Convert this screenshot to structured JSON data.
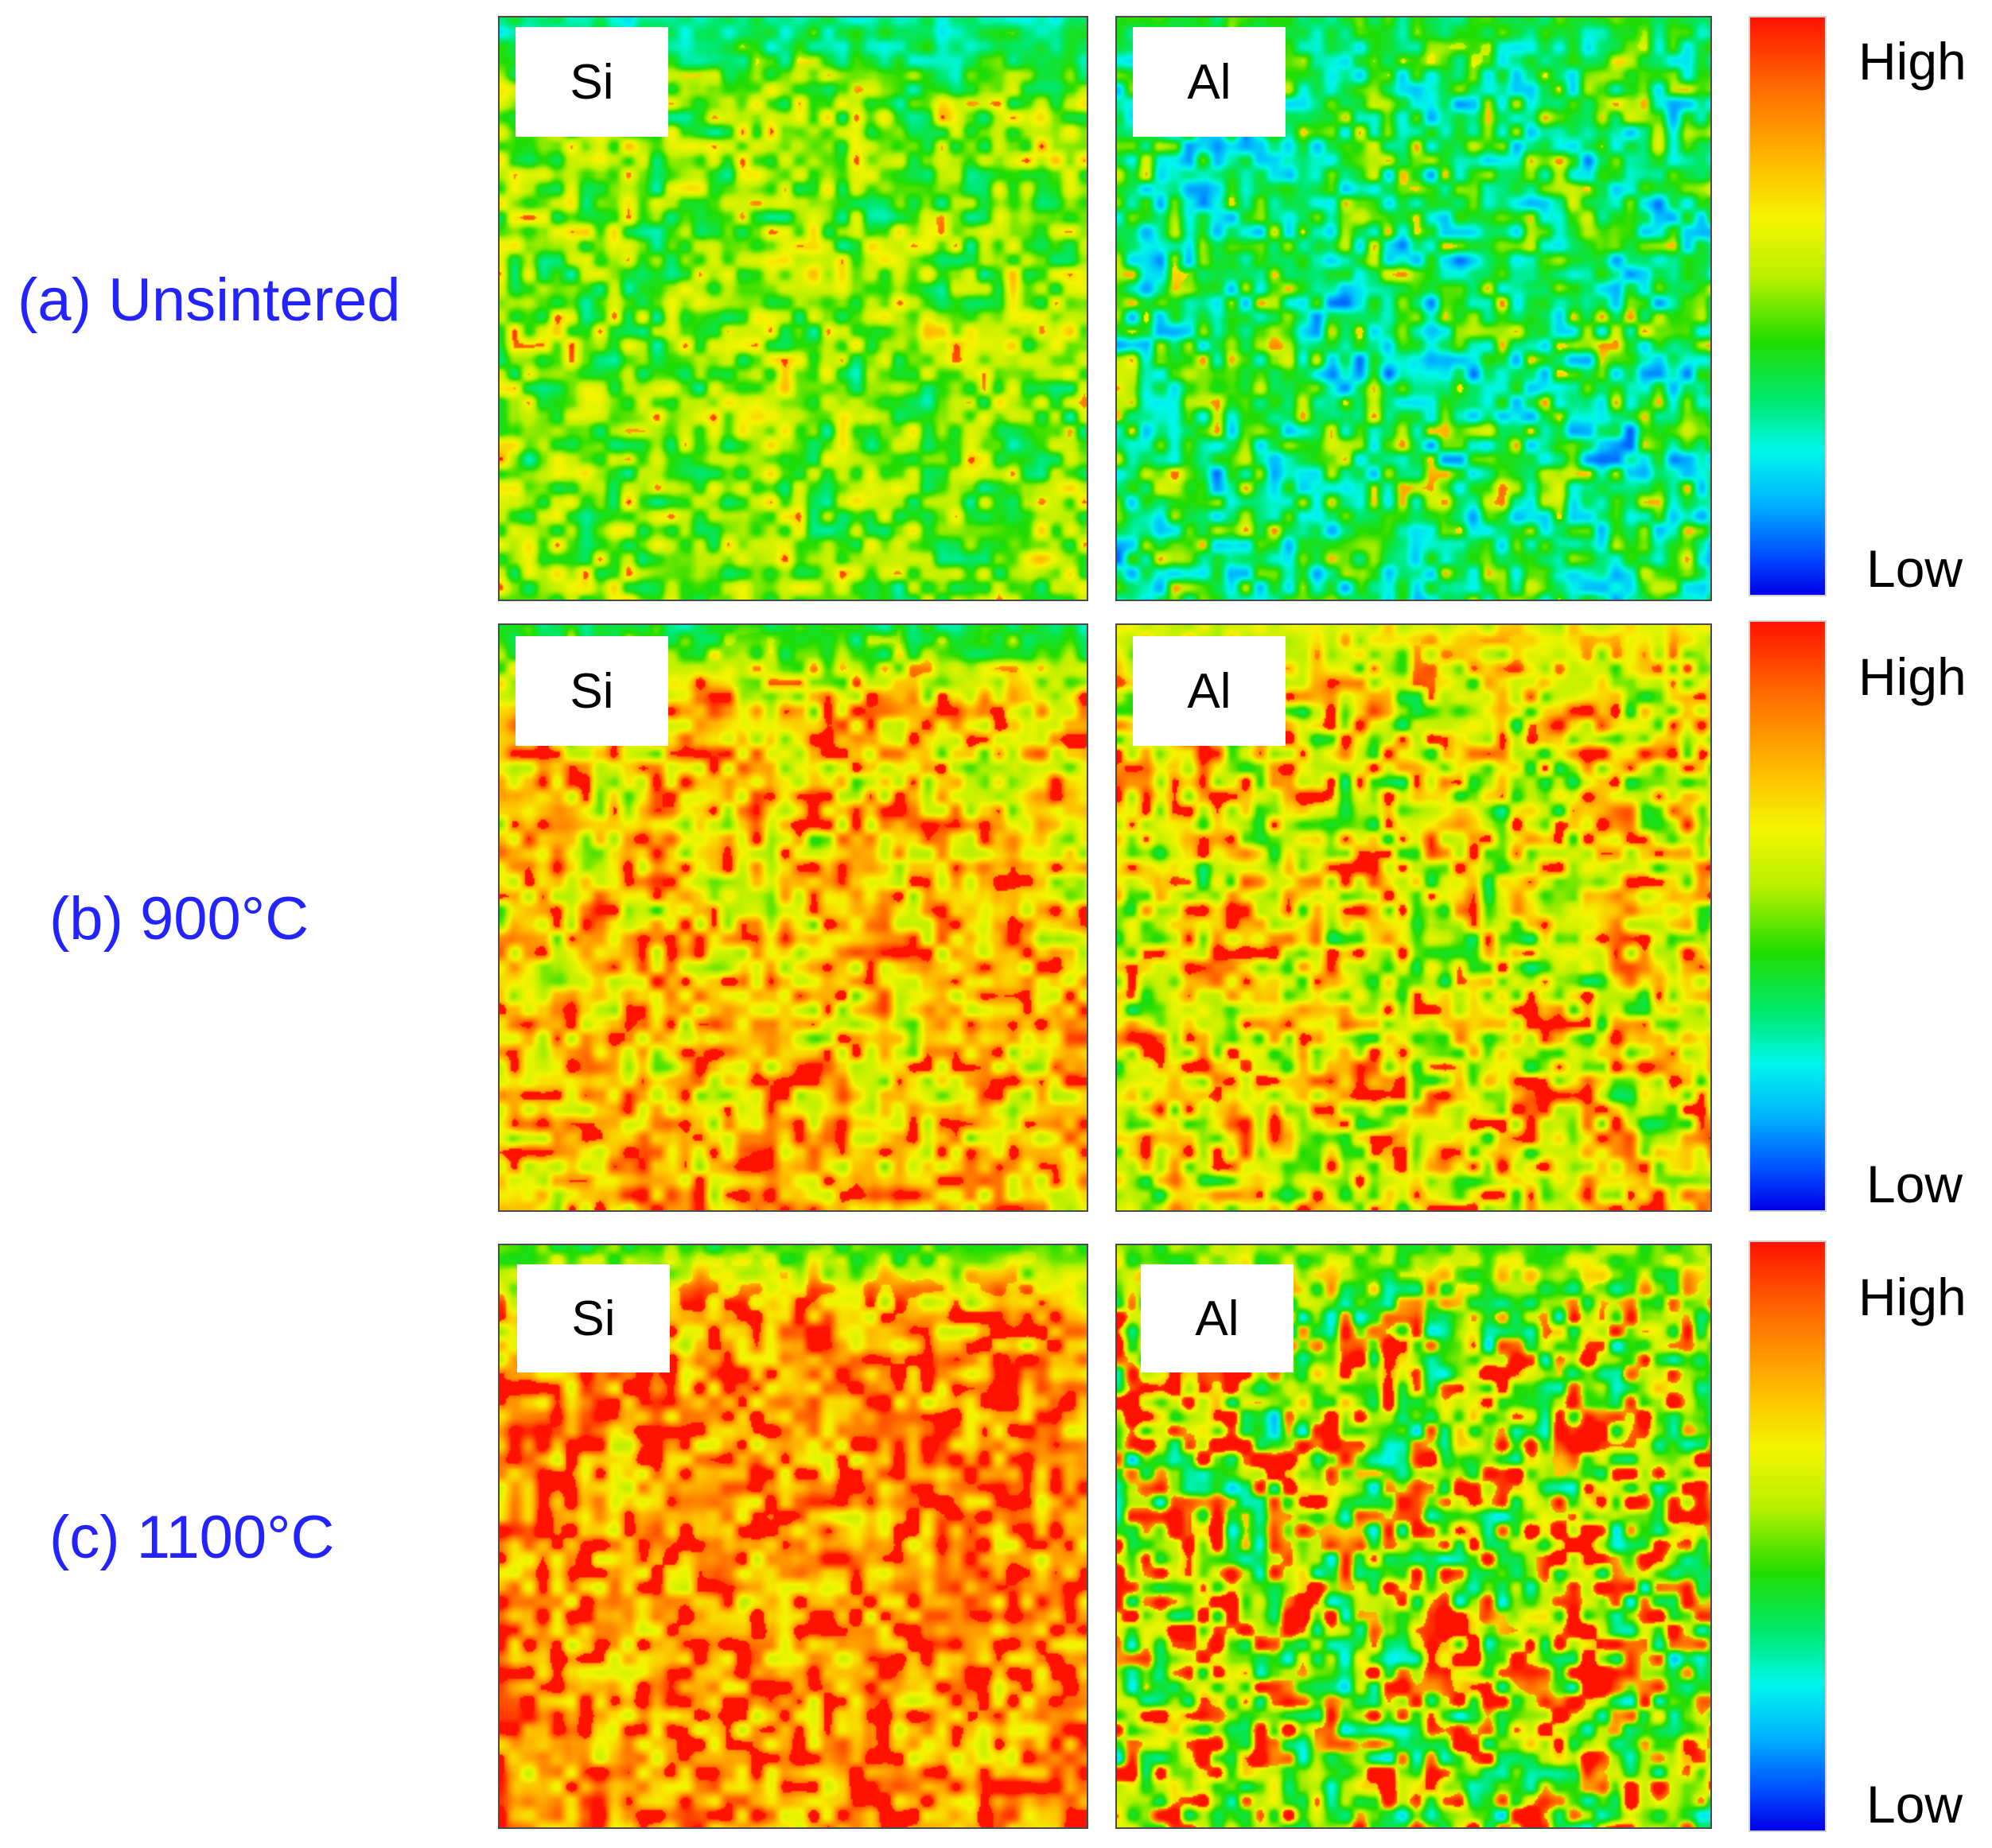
{
  "chart_data": {
    "type": "heatmap",
    "description_kind": "EDS elemental distribution maps",
    "rows": [
      {
        "label": "(a) Unsintered",
        "colorbar": {
          "high_label": "High",
          "low_label": "Low"
        },
        "panels": [
          {
            "element": "Si",
            "mean_level": 0.56,
            "spread": 0.18,
            "top_band_level": 0.36,
            "hot_fraction": 0.02
          },
          {
            "element": "Al",
            "mean_level": 0.42,
            "spread": 0.22,
            "top_band_level": 0.45,
            "hot_fraction": 0.03
          }
        ]
      },
      {
        "label": "(b) 900°C",
        "colorbar": {
          "high_label": "High",
          "low_label": "Low"
        },
        "panels": [
          {
            "element": "Si",
            "mean_level": 0.76,
            "spread": 0.2,
            "top_band_level": 0.42,
            "hot_fraction": 0.06
          },
          {
            "element": "Al",
            "mean_level": 0.7,
            "spread": 0.24,
            "top_band_level": 0.68,
            "hot_fraction": 0.06
          }
        ]
      },
      {
        "label": "(c) 1100°C",
        "colorbar": {
          "high_label": "High",
          "low_label": "Low"
        },
        "panels": [
          {
            "element": "Si",
            "mean_level": 0.84,
            "spread": 0.18,
            "top_band_level": 0.5,
            "hot_fraction": 0.1
          },
          {
            "element": "Al",
            "mean_level": 0.6,
            "spread": 0.3,
            "top_band_level": 0.55,
            "hot_fraction": 0.12
          }
        ]
      }
    ],
    "colormap": {
      "name": "jet",
      "stops": [
        "#0000e8",
        "#0050ff",
        "#00b4ff",
        "#00f7ea",
        "#00e86a",
        "#22dd00",
        "#b9f000",
        "#f4f400",
        "#ffb400",
        "#ff6a00",
        "#ff1200"
      ]
    }
  }
}
